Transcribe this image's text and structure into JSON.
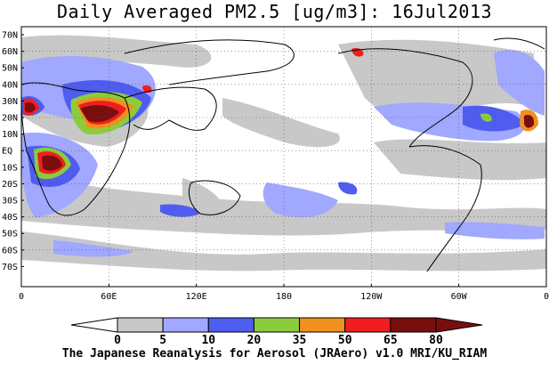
{
  "title": "Daily Averaged PM2.5 [ug/m3]: 16Jul2013",
  "footer": "The Japanese Reanalysis for Aerosol (JRAero) v1.0 MRI/KU_RIAM",
  "lat_labels": [
    "70N",
    "60N",
    "50N",
    "40N",
    "30N",
    "20N",
    "10N",
    "EQ",
    "10S",
    "20S",
    "30S",
    "40S",
    "50S",
    "60S",
    "70S"
  ],
  "lon_labels": [
    "0",
    "60E",
    "120E",
    "180",
    "120W",
    "60W",
    "0"
  ],
  "colorbar": {
    "ticks": [
      "0",
      "5",
      "10",
      "20",
      "35",
      "50",
      "65",
      "80"
    ],
    "colors": [
      "#ffffff",
      "#c8c8c8",
      "#a0a8ff",
      "#4e5cf0",
      "#8ccc3c",
      "#f0901e",
      "#f01e1e",
      "#7a0e0e"
    ]
  }
}
